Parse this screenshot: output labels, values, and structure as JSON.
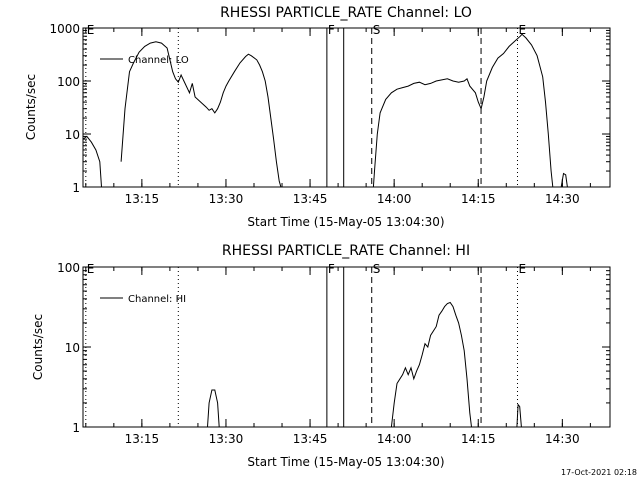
{
  "footer": {
    "timestamp": "17-Oct-2021 02:18"
  },
  "colors": {
    "background": "#ffffff",
    "foreground": "#000000"
  },
  "chart_data": [
    {
      "type": "line",
      "title": "RHESSI PARTICLE_RATE Channel: LO",
      "xlabel": "Start Time (15-May-05 13:04:30)",
      "ylabel": "Counts/sec",
      "x_unit": "minutes after 13:04:30",
      "xlim": [
        0,
        94
      ],
      "ylim": [
        1,
        1000
      ],
      "yscale": "log",
      "x_ticks": [
        {
          "label": "13:15",
          "x": 10.5
        },
        {
          "label": "13:30",
          "x": 25.5
        },
        {
          "label": "13:45",
          "x": 40.5
        },
        {
          "label": "14:00",
          "x": 55.5
        },
        {
          "label": "14:15",
          "x": 70.5
        },
        {
          "label": "14:30",
          "x": 85.5
        }
      ],
      "y_ticks": [
        {
          "label": "1",
          "y": 1
        },
        {
          "label": "10",
          "y": 10
        },
        {
          "label": "100",
          "y": 100
        },
        {
          "label": "1000",
          "y": 1000
        }
      ],
      "grid": false,
      "legend": {
        "position": "top-left",
        "entries": [
          "Channel: LO"
        ]
      },
      "markers": [
        {
          "label": "E",
          "x": 0.5,
          "style": "dotted"
        },
        {
          "label": "",
          "x": 17,
          "style": "dotted"
        },
        {
          "label": "F",
          "x": 43.5,
          "style": "solid"
        },
        {
          "label": "",
          "x": 46.5,
          "style": "solid"
        },
        {
          "label": "S",
          "x": 51.5,
          "style": "dashed"
        },
        {
          "label": "",
          "x": 71,
          "style": "dashed"
        },
        {
          "label": "E",
          "x": 77.5,
          "style": "dotted"
        },
        {
          "label": "",
          "x": 94,
          "style": "dotted"
        }
      ],
      "series": [
        {
          "name": "Channel: LO",
          "segments": [
            [
              [
                0,
                8
              ],
              [
                0.7,
                9
              ],
              [
                1.5,
                7
              ],
              [
                2.3,
                5
              ],
              [
                3,
                3
              ],
              [
                3.3,
                1
              ]
            ],
            [
              [
                6.8,
                3
              ],
              [
                7.5,
                30
              ],
              [
                8.3,
                150
              ],
              [
                9,
                220
              ],
              [
                10,
                350
              ],
              [
                11,
                450
              ],
              [
                12,
                520
              ],
              [
                13,
                550
              ],
              [
                14,
                520
              ],
              [
                15,
                420
              ],
              [
                15.5,
                250
              ],
              [
                16,
                150
              ],
              [
                16.5,
                110
              ],
              [
                17,
                95
              ],
              [
                17.5,
                130
              ],
              [
                18,
                100
              ],
              [
                19,
                60
              ],
              [
                19.5,
                90
              ],
              [
                20,
                50
              ],
              [
                21,
                40
              ],
              [
                22,
                32
              ],
              [
                22.5,
                28
              ],
              [
                23,
                30
              ],
              [
                23.5,
                25
              ],
              [
                24,
                30
              ],
              [
                24.5,
                40
              ],
              [
                25,
                60
              ],
              [
                25.5,
                80
              ],
              [
                26,
                100
              ],
              [
                27,
                150
              ],
              [
                28,
                220
              ],
              [
                29,
                290
              ],
              [
                29.5,
                320
              ],
              [
                30,
                300
              ],
              [
                31,
                250
              ],
              [
                31.5,
                200
              ],
              [
                32,
                150
              ],
              [
                32.5,
                100
              ],
              [
                33,
                50
              ],
              [
                33.5,
                20
              ],
              [
                34,
                8
              ],
              [
                34.5,
                3
              ],
              [
                35,
                1.3
              ],
              [
                35.3,
                1
              ]
            ],
            [
              [
                51.8,
                1
              ],
              [
                52,
                2
              ],
              [
                52.5,
                10
              ],
              [
                53,
                25
              ],
              [
                54,
                45
              ],
              [
                55,
                60
              ],
              [
                56,
                70
              ],
              [
                57,
                75
              ],
              [
                58,
                80
              ],
              [
                59,
                90
              ],
              [
                60,
                95
              ],
              [
                61,
                85
              ],
              [
                62,
                90
              ],
              [
                63,
                100
              ],
              [
                64,
                105
              ],
              [
                65,
                110
              ],
              [
                66,
                100
              ],
              [
                67,
                95
              ],
              [
                68,
                100
              ],
              [
                68.5,
                110
              ],
              [
                69,
                80
              ],
              [
                70,
                60
              ],
              [
                70.5,
                40
              ],
              [
                71,
                30
              ],
              [
                71.5,
                50
              ],
              [
                72,
                100
              ],
              [
                73,
                180
              ],
              [
                74,
                270
              ],
              [
                75,
                330
              ],
              [
                76,
                450
              ],
              [
                77,
                560
              ],
              [
                78,
                700
              ],
              [
                78.3,
                760
              ],
              [
                79,
                650
              ],
              [
                80,
                480
              ],
              [
                81,
                300
              ],
              [
                82,
                120
              ],
              [
                82.5,
                40
              ],
              [
                83,
                10
              ],
              [
                83.5,
                2
              ],
              [
                83.8,
                1
              ]
            ],
            [
              [
                85.3,
                1
              ],
              [
                85.7,
                1.8
              ],
              [
                86.1,
                1.7
              ],
              [
                86.4,
                1
              ]
            ]
          ]
        }
      ]
    },
    {
      "type": "line",
      "title": "RHESSI PARTICLE_RATE Channel: HI",
      "xlabel": "Start Time (15-May-05 13:04:30)",
      "ylabel": "Counts/sec",
      "x_unit": "minutes after 13:04:30",
      "xlim": [
        0,
        94
      ],
      "ylim": [
        1,
        100
      ],
      "yscale": "log",
      "x_ticks": [
        {
          "label": "13:15",
          "x": 10.5
        },
        {
          "label": "13:30",
          "x": 25.5
        },
        {
          "label": "13:45",
          "x": 40.5
        },
        {
          "label": "14:00",
          "x": 55.5
        },
        {
          "label": "14:15",
          "x": 70.5
        },
        {
          "label": "14:30",
          "x": 85.5
        }
      ],
      "y_ticks": [
        {
          "label": "1",
          "y": 1
        },
        {
          "label": "10",
          "y": 10
        },
        {
          "label": "100",
          "y": 100
        }
      ],
      "grid": false,
      "legend": {
        "position": "top-left",
        "entries": [
          "Channel: HI"
        ]
      },
      "markers": [
        {
          "label": "E",
          "x": 0.5,
          "style": "dotted"
        },
        {
          "label": "",
          "x": 17,
          "style": "dotted"
        },
        {
          "label": "F",
          "x": 43.5,
          "style": "solid"
        },
        {
          "label": "",
          "x": 46.5,
          "style": "solid"
        },
        {
          "label": "S",
          "x": 51.5,
          "style": "dashed"
        },
        {
          "label": "",
          "x": 71,
          "style": "dashed"
        },
        {
          "label": "E",
          "x": 77.5,
          "style": "dotted"
        },
        {
          "label": "",
          "x": 94,
          "style": "dotted"
        }
      ],
      "series": [
        {
          "name": "Channel: HI",
          "segments": [
            [
              [
                22.2,
                1
              ],
              [
                22.5,
                2
              ],
              [
                23,
                2.9
              ],
              [
                23.5,
                2.9
              ],
              [
                24,
                2
              ],
              [
                24.3,
                1
              ]
            ],
            [
              [
                55,
                1
              ],
              [
                55.5,
                2
              ],
              [
                56,
                3.5
              ],
              [
                57,
                4.5
              ],
              [
                57.5,
                5.5
              ],
              [
                58,
                4.5
              ],
              [
                58.5,
                5.5
              ],
              [
                59,
                4
              ],
              [
                59.5,
                5
              ],
              [
                60,
                6
              ],
              [
                60.5,
                8
              ],
              [
                61,
                11
              ],
              [
                61.5,
                10
              ],
              [
                62,
                14
              ],
              [
                63,
                18
              ],
              [
                63.5,
                25
              ],
              [
                64,
                28
              ],
              [
                64.5,
                32
              ],
              [
                65,
                35
              ],
              [
                65.5,
                36
              ],
              [
                66,
                32
              ],
              [
                66.5,
                25
              ],
              [
                67,
                20
              ],
              [
                67.5,
                14
              ],
              [
                68,
                9
              ],
              [
                68.5,
                4
              ],
              [
                69,
                1.5
              ],
              [
                69.3,
                1
              ]
            ],
            [
              [
                77.4,
                1
              ],
              [
                77.6,
                1.9
              ],
              [
                77.9,
                1.8
              ],
              [
                78.2,
                1
              ]
            ]
          ]
        }
      ]
    }
  ]
}
